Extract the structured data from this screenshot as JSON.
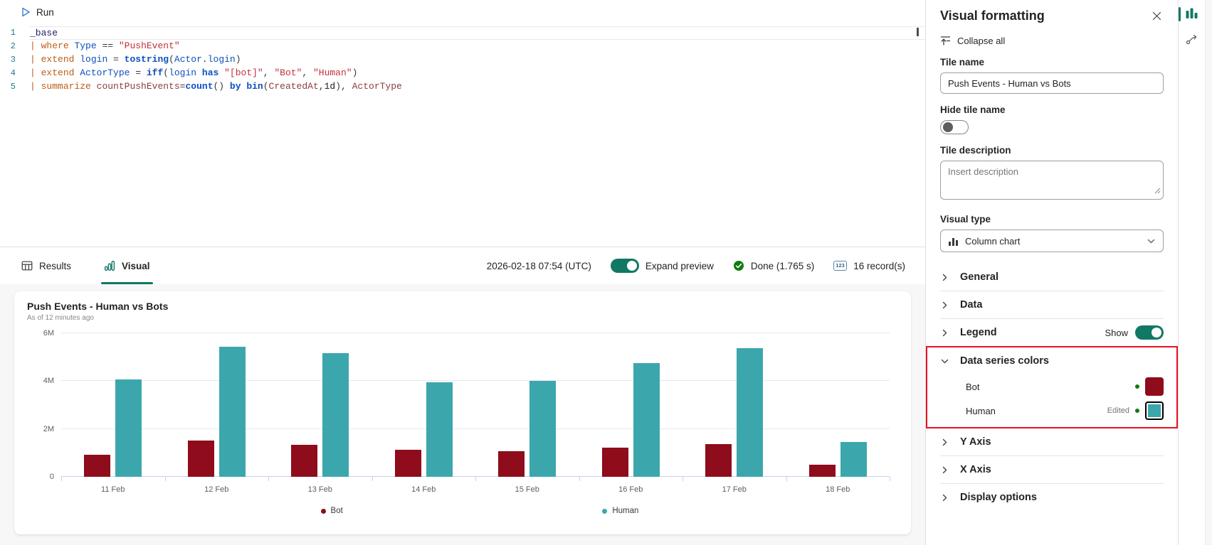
{
  "toolbar": {
    "run_label": "Run"
  },
  "editor": {
    "lines": [
      {
        "n": 1,
        "current": true,
        "tokens": [
          {
            "t": "_base",
            "c": "def"
          }
        ]
      },
      {
        "n": 2,
        "tokens": [
          {
            "t": "| ",
            "c": "kw"
          },
          {
            "t": "where",
            "c": "kw"
          },
          {
            "t": " ",
            "c": "pl"
          },
          {
            "t": "Type",
            "c": "col"
          },
          {
            "t": " == ",
            "c": "pl"
          },
          {
            "t": "\"PushEvent\"",
            "c": "str"
          }
        ]
      },
      {
        "n": 3,
        "tokens": [
          {
            "t": "| ",
            "c": "kw"
          },
          {
            "t": "extend",
            "c": "kw"
          },
          {
            "t": " ",
            "c": "pl"
          },
          {
            "t": "login",
            "c": "col"
          },
          {
            "t": " = ",
            "c": "pl"
          },
          {
            "t": "tostring",
            "c": "fn"
          },
          {
            "t": "(",
            "c": "pl"
          },
          {
            "t": "Actor",
            "c": "col"
          },
          {
            "t": ".",
            "c": "pl"
          },
          {
            "t": "login",
            "c": "col"
          },
          {
            "t": ")",
            "c": "pl"
          }
        ]
      },
      {
        "n": 4,
        "tokens": [
          {
            "t": "| ",
            "c": "kw"
          },
          {
            "t": "extend",
            "c": "kw"
          },
          {
            "t": " ",
            "c": "pl"
          },
          {
            "t": "ActorType",
            "c": "col"
          },
          {
            "t": " = ",
            "c": "pl"
          },
          {
            "t": "iff",
            "c": "fn"
          },
          {
            "t": "(",
            "c": "pl"
          },
          {
            "t": "login",
            "c": "col"
          },
          {
            "t": " ",
            "c": "pl"
          },
          {
            "t": "has",
            "c": "fn"
          },
          {
            "t": " ",
            "c": "pl"
          },
          {
            "t": "\"[bot]\"",
            "c": "str"
          },
          {
            "t": ", ",
            "c": "pl"
          },
          {
            "t": "\"Bot\"",
            "c": "str"
          },
          {
            "t": ", ",
            "c": "pl"
          },
          {
            "t": "\"Human\"",
            "c": "str"
          },
          {
            "t": ")",
            "c": "pl"
          }
        ]
      },
      {
        "n": 5,
        "tokens": [
          {
            "t": "| ",
            "c": "kw"
          },
          {
            "t": "summarize",
            "c": "kw"
          },
          {
            "t": " ",
            "c": "pl"
          },
          {
            "t": "countPushEvents",
            "c": "col2"
          },
          {
            "t": "=",
            "c": "pl"
          },
          {
            "t": "count",
            "c": "fn"
          },
          {
            "t": "() ",
            "c": "pl"
          },
          {
            "t": "by",
            "c": "fn"
          },
          {
            "t": " ",
            "c": "pl"
          },
          {
            "t": "bin",
            "c": "fn"
          },
          {
            "t": "(",
            "c": "pl"
          },
          {
            "t": "CreatedAt",
            "c": "col2"
          },
          {
            "t": ",",
            "c": "pl"
          },
          {
            "t": "1d",
            "c": "num"
          },
          {
            "t": ")",
            "c": "pl"
          },
          {
            "t": ", ",
            "c": "pl"
          },
          {
            "t": "ActorType",
            "c": "col2"
          }
        ]
      }
    ]
  },
  "tabs": {
    "results": "Results",
    "visual": "Visual"
  },
  "statusbar": {
    "timestamp": "2026-02-18 07:54 (UTC)",
    "expand_preview": "Expand preview",
    "done": "Done (1.765 s)",
    "records": "16 record(s)",
    "records_icon": "123"
  },
  "chart_data": {
    "type": "bar",
    "title": "Push Events - Human vs Bots",
    "subtitle": "As of 12 minutes ago",
    "categories": [
      "11 Feb",
      "12 Feb",
      "13 Feb",
      "14 Feb",
      "15 Feb",
      "16 Feb",
      "17 Feb",
      "18 Feb"
    ],
    "series": [
      {
        "name": "Bot",
        "color": "#8E0C1B",
        "values": [
          930000,
          1520000,
          1330000,
          1120000,
          1070000,
          1220000,
          1370000,
          500000
        ]
      },
      {
        "name": "Human",
        "color": "#3BA7AD",
        "values": [
          4080000,
          5430000,
          5160000,
          3950000,
          4000000,
          4740000,
          5370000,
          1470000
        ]
      }
    ],
    "ylim": [
      0,
      6000000
    ],
    "yticks": [
      {
        "v": 0,
        "label": "0"
      },
      {
        "v": 2000000,
        "label": "2M"
      },
      {
        "v": 4000000,
        "label": "4M"
      },
      {
        "v": 6000000,
        "label": "6M"
      }
    ],
    "grid": true,
    "legend_position": "bottom",
    "xlabel": "",
    "ylabel": ""
  },
  "panel": {
    "title": "Visual formatting",
    "collapse_all": "Collapse all",
    "tile_name_label": "Tile name",
    "tile_name_value": "Push Events - Human vs Bots",
    "hide_tile_name_label": "Hide tile name",
    "hide_tile_name_on": false,
    "tile_description_label": "Tile description",
    "tile_description_placeholder": "Insert description",
    "visual_type_label": "Visual type",
    "visual_type_value": "Column chart",
    "highlight_color": "#E81123",
    "sections": [
      {
        "id": "general",
        "label": "General"
      },
      {
        "id": "data",
        "label": "Data"
      },
      {
        "id": "legend",
        "label": "Legend",
        "toggle": {
          "label": "Show",
          "on": true
        }
      },
      {
        "id": "data-series-colors",
        "label": "Data series colors",
        "expanded": true,
        "highlighted": true,
        "rows": [
          {
            "label": "Bot",
            "color": "#8E0C1B",
            "edited": false
          },
          {
            "label": "Human",
            "color": "#3BA7AD",
            "edited": true,
            "edited_label": "Edited"
          }
        ]
      },
      {
        "id": "y-axis",
        "label": "Y Axis"
      },
      {
        "id": "x-axis",
        "label": "X Axis"
      },
      {
        "id": "display-options",
        "label": "Display options"
      }
    ]
  },
  "rail": {
    "icons": [
      "column-chart-icon",
      "link-arrow-icon"
    ]
  }
}
